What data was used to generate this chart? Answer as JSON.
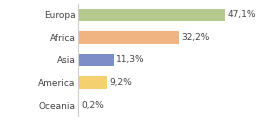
{
  "categories": [
    "Europa",
    "Africa",
    "Asia",
    "America",
    "Oceania"
  ],
  "values": [
    47.1,
    32.2,
    11.3,
    9.2,
    0.2
  ],
  "labels": [
    "47,1%",
    "32,2%",
    "11,3%",
    "9,2%",
    "0,2%"
  ],
  "bar_colors": [
    "#b5c98e",
    "#f0b482",
    "#7b8ec8",
    "#f5d06e",
    "#c8c8c8"
  ],
  "background_color": "#ffffff",
  "xlim": [
    0,
    62
  ],
  "label_fontsize": 6.5,
  "category_fontsize": 6.5,
  "bar_height": 0.55
}
